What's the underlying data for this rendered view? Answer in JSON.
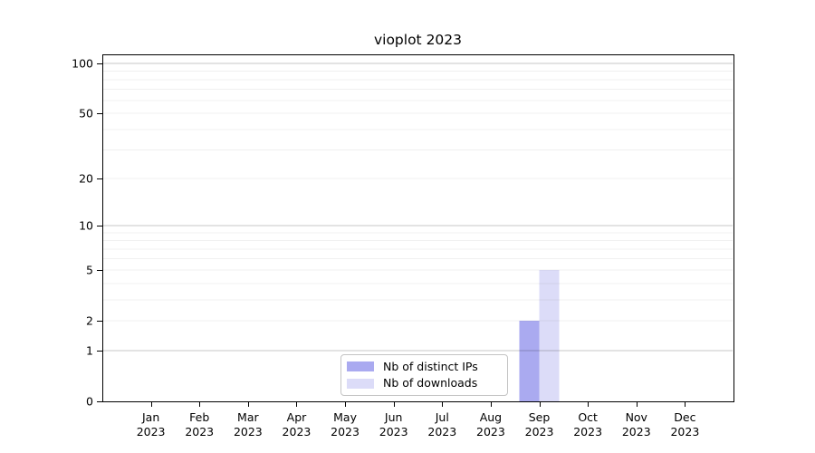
{
  "chart_data": {
    "type": "bar",
    "title": "vioplot 2023",
    "categories": [
      "Jan",
      "Feb",
      "Mar",
      "Apr",
      "May",
      "Jun",
      "Jul",
      "Aug",
      "Sep",
      "Oct",
      "Nov",
      "Dec"
    ],
    "x_tick_second_line": "2023",
    "series": [
      {
        "name": "Nb of distinct IPs",
        "color": "#aaaaf0",
        "values": [
          0,
          0,
          0,
          0,
          0,
          0,
          0,
          0,
          2,
          0,
          0,
          0
        ]
      },
      {
        "name": "Nb of downloads",
        "color": "#dcdcf8",
        "values": [
          0,
          0,
          0,
          0,
          0,
          0,
          0,
          0,
          5,
          0,
          0,
          0
        ]
      }
    ],
    "y_axis": {
      "scale": "log1p",
      "max": 100,
      "tick_labels": [
        "0",
        "1",
        "2",
        "5",
        "10",
        "20",
        "50",
        "100"
      ],
      "tick_values": [
        0,
        1,
        2,
        5,
        10,
        20,
        50,
        100
      ]
    },
    "grid": {
      "major_values": [
        1,
        10,
        100
      ],
      "minor_values": [
        2,
        3,
        4,
        5,
        6,
        7,
        8,
        9,
        20,
        30,
        40,
        50,
        60,
        70,
        80,
        90
      ],
      "major_color": "#c8c8c8",
      "minor_color": "#f0f0f0"
    },
    "legend_position": "bottom-center",
    "axis_color": "#000000",
    "background_color": "#ffffff"
  }
}
